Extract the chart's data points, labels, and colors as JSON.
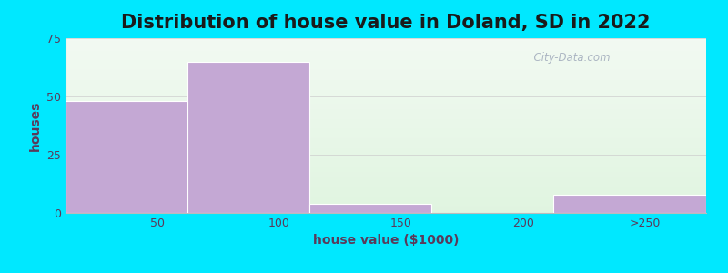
{
  "title": "Distribution of house value in Doland, SD in 2022",
  "xlabel": "house value ($1000)",
  "ylabel": "houses",
  "bar_edges": [
    12.5,
    62.5,
    112.5,
    162.5,
    212.5,
    275
  ],
  "bar_heights": [
    48,
    65,
    4,
    0,
    8
  ],
  "bar_color": "#c4a8d4",
  "tick_labels": [
    "50",
    "100",
    "150",
    "200",
    ">250"
  ],
  "tick_positions": [
    50,
    100,
    150,
    200,
    250
  ],
  "ylim": [
    0,
    75
  ],
  "yticks": [
    0,
    25,
    50,
    75
  ],
  "bg_outer": "#00e8ff",
  "watermark": "  City-Data.com",
  "title_fontsize": 15,
  "label_fontsize": 10,
  "tick_fontsize": 9,
  "label_color": "#5a3a5a",
  "title_color": "#1a1a1a",
  "grid_color": "#e8e8e8"
}
